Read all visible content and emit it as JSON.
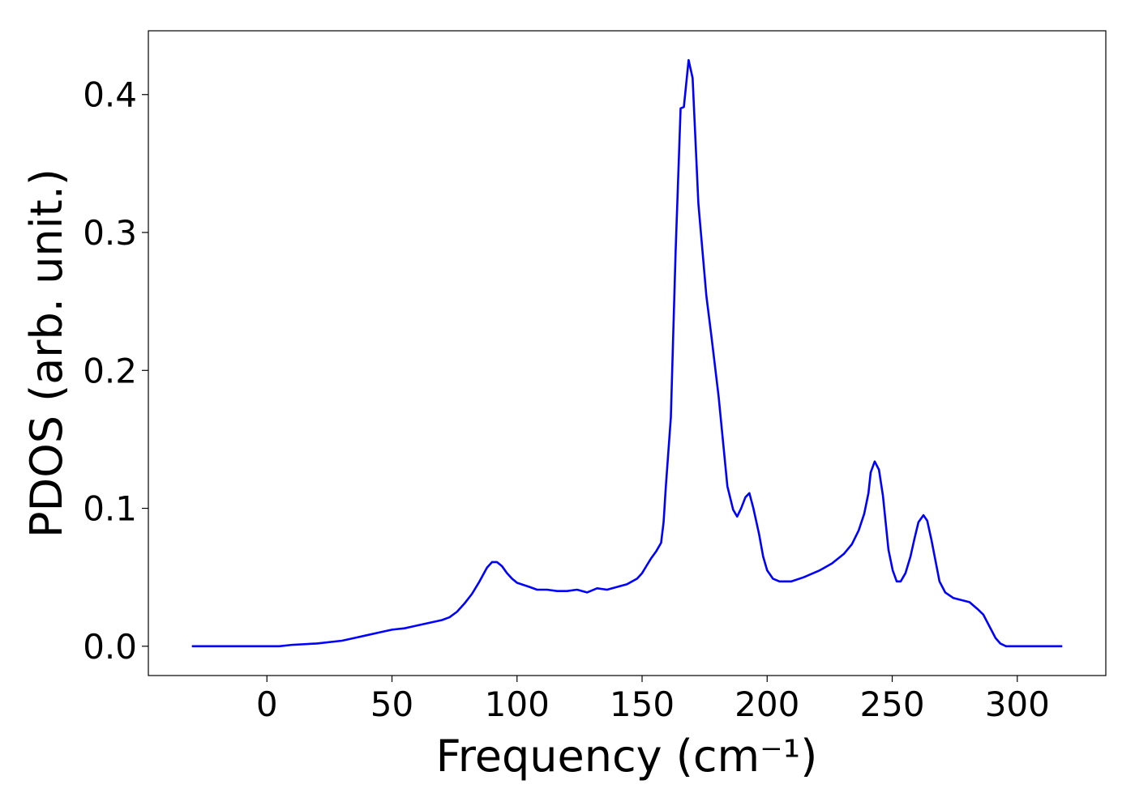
{
  "chart_data": {
    "type": "line",
    "xlabel": "Frequency (cm⁻¹)",
    "ylabel": "PDOS (arb. unit.)",
    "x": [
      -30,
      0,
      5,
      10,
      20,
      30,
      35,
      40,
      45,
      50,
      55,
      60,
      65,
      70,
      73,
      76,
      79,
      82,
      85,
      88,
      90,
      92,
      94,
      96,
      98,
      100,
      105,
      108,
      112,
      116,
      120,
      124,
      128,
      132,
      136,
      140,
      144,
      148,
      150,
      152,
      153.7,
      155.7,
      157.6,
      158.6,
      159.5,
      161.5,
      163.4,
      165.4,
      166.7,
      168.6,
      170.2,
      172.5,
      175.7,
      177.7,
      180.6,
      184.1,
      186.4,
      188,
      189.6,
      191.3,
      192.9,
      194.5,
      196.8,
      198.4,
      200,
      202.3,
      204.9,
      209.7,
      214.6,
      221,
      225.9,
      230.7,
      233.9,
      236.6,
      238.8,
      240.5,
      241.4,
      243,
      244.7,
      246.3,
      248.5,
      250.2,
      251.8,
      253.4,
      255.3,
      257.3,
      258.9,
      260.5,
      262.5,
      264,
      265.7,
      267.3,
      268.9,
      271.2,
      274.4,
      280.9,
      284.1,
      286.4,
      289,
      291.3,
      293.2,
      295.5,
      318
    ],
    "series": [
      {
        "name": "PDOS",
        "color": "#0000ff",
        "values": [
          0,
          0,
          0,
          0.001,
          0.002,
          0.004,
          0.006,
          0.008,
          0.01,
          0.012,
          0.013,
          0.015,
          0.017,
          0.019,
          0.021,
          0.025,
          0.031,
          0.038,
          0.047,
          0.057,
          0.061,
          0.061,
          0.058,
          0.053,
          0.049,
          0.046,
          0.043,
          0.041,
          0.041,
          0.04,
          0.04,
          0.041,
          0.039,
          0.042,
          0.041,
          0.043,
          0.045,
          0.049,
          0.053,
          0.059,
          0.064,
          0.069,
          0.075,
          0.09,
          0.116,
          0.166,
          0.286,
          0.39,
          0.391,
          0.425,
          0.412,
          0.321,
          0.254,
          0.225,
          0.181,
          0.116,
          0.099,
          0.094,
          0.1,
          0.108,
          0.111,
          0.1,
          0.081,
          0.065,
          0.055,
          0.049,
          0.047,
          0.047,
          0.05,
          0.055,
          0.06,
          0.067,
          0.074,
          0.084,
          0.096,
          0.111,
          0.126,
          0.134,
          0.128,
          0.109,
          0.07,
          0.055,
          0.047,
          0.047,
          0.053,
          0.065,
          0.078,
          0.09,
          0.095,
          0.091,
          0.077,
          0.062,
          0.047,
          0.039,
          0.035,
          0.032,
          0.027,
          0.023,
          0.014,
          0.006,
          0.002,
          0,
          0
        ]
      }
    ],
    "xlim": [
      -47.4,
      335.4
    ],
    "xticks": [
      0,
      50,
      100,
      150,
      200,
      250,
      300
    ],
    "ylim": [
      -0.02125,
      0.44625
    ],
    "yticks": [
      {
        "value": 0,
        "label": "0.0"
      },
      0.1,
      0.2,
      0.3,
      0.4
    ],
    "grid": false
  }
}
